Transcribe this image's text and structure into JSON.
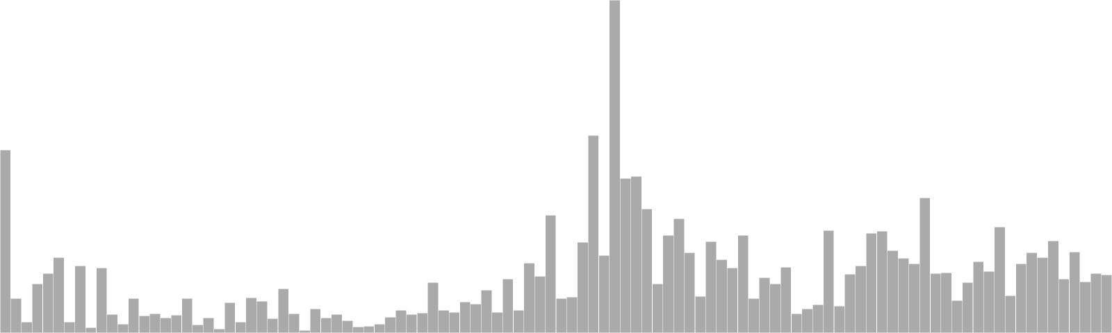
{
  "chart_data": {
    "type": "bar",
    "bar_color": "#aaaaaa",
    "bar_stroke": "#ffffff",
    "background": "#ffffff",
    "axes_visible": false,
    "grid": false,
    "ylim": [
      0,
      480
    ],
    "values": [
      264,
      50,
      16,
      71,
      86,
      109,
      16,
      97,
      8,
      94,
      27,
      13,
      50,
      25,
      28,
      22,
      26,
      50,
      12,
      22,
      6,
      44,
      16,
      51,
      46,
      21,
      64,
      28,
      4,
      35,
      22,
      27,
      18,
      9,
      10,
      13,
      23,
      33,
      27,
      29,
      73,
      33,
      30,
      45,
      42,
      62,
      30,
      78,
      33,
      101,
      82,
      170,
      50,
      52,
      131,
      285,
      112,
      480,
      223,
      226,
      179,
      71,
      141,
      165,
      116,
      53,
      132,
      106,
      94,
      141,
      50,
      80,
      71,
      95,
      28,
      35,
      41,
      148,
      39,
      85,
      97,
      144,
      147,
      119,
      108,
      100,
      195,
      86,
      87,
      47,
      73,
      103,
      89,
      153,
      54,
      100,
      116,
      109,
      133,
      78,
      117,
      74,
      86,
      84
    ]
  }
}
